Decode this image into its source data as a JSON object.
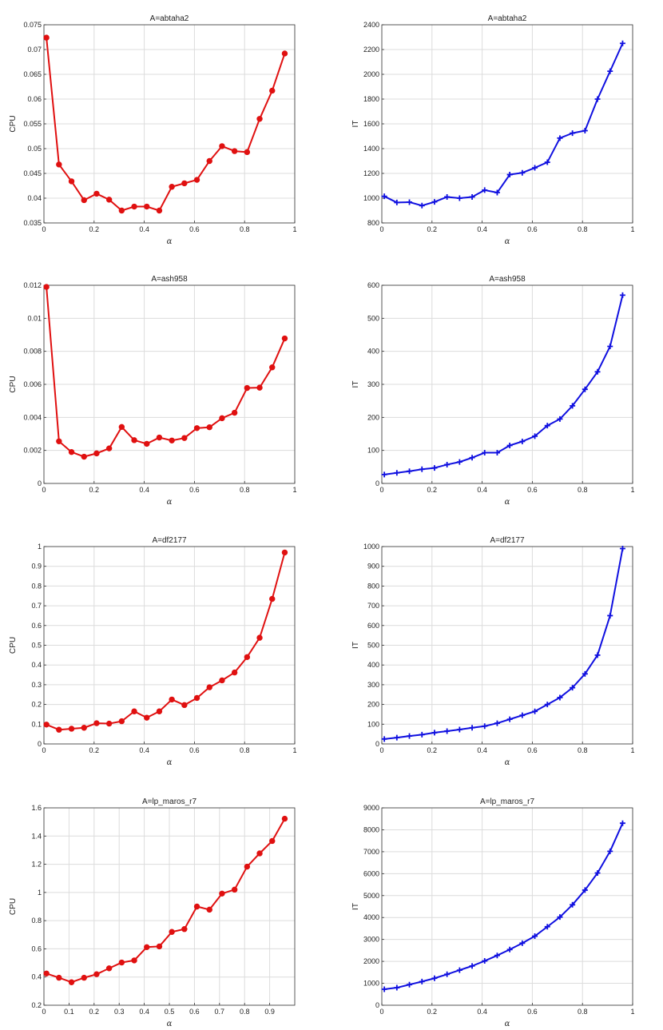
{
  "chart_data": [
    {
      "type": "line",
      "title": "A=abtaha2",
      "xlabel": "α",
      "ylabel": "CPU",
      "xlim": [
        0,
        1
      ],
      "ylim": [
        0.035,
        0.075
      ],
      "xticks": [
        "0",
        "0.2",
        "0.4",
        "0.6",
        "0.8",
        "1"
      ],
      "yticks": [
        "0.035",
        "0.04",
        "0.045",
        "0.05",
        "0.055",
        "0.06",
        "0.065",
        "0.07",
        "0.075"
      ],
      "grid": true,
      "color": "#e01010",
      "marker": "circle",
      "x": [
        0.01,
        0.06,
        0.11,
        0.16,
        0.21,
        0.26,
        0.31,
        0.36,
        0.41,
        0.46,
        0.51,
        0.56,
        0.61,
        0.66,
        0.71,
        0.76,
        0.81,
        0.86,
        0.91,
        0.96
      ],
      "y": [
        0.0724,
        0.0468,
        0.0434,
        0.0396,
        0.0409,
        0.0397,
        0.0375,
        0.0383,
        0.0383,
        0.0375,
        0.0423,
        0.043,
        0.0437,
        0.0475,
        0.0505,
        0.0495,
        0.0493,
        0.056,
        0.0617,
        0.0692
      ]
    },
    {
      "type": "line",
      "title": "A=abtaha2",
      "xlabel": "α",
      "ylabel": "IT",
      "xlim": [
        0,
        1
      ],
      "ylim": [
        800,
        2400
      ],
      "xticks": [
        "0",
        "0.2",
        "0.4",
        "0.6",
        "0.8",
        "1"
      ],
      "yticks": [
        "800",
        "1000",
        "1200",
        "1400",
        "1600",
        "1800",
        "2000",
        "2200",
        "2400"
      ],
      "grid": true,
      "color": "#1010e0",
      "marker": "plus",
      "x": [
        0.01,
        0.06,
        0.11,
        0.16,
        0.21,
        0.26,
        0.31,
        0.36,
        0.41,
        0.46,
        0.51,
        0.56,
        0.61,
        0.66,
        0.71,
        0.76,
        0.81,
        0.86,
        0.91,
        0.96
      ],
      "y": [
        1015,
        965,
        968,
        940,
        970,
        1010,
        1000,
        1010,
        1065,
        1045,
        1190,
        1205,
        1245,
        1290,
        1485,
        1525,
        1545,
        1800,
        2025,
        2250
      ]
    },
    {
      "type": "line",
      "title": "A=ash958",
      "xlabel": "α",
      "ylabel": "CPU",
      "xlim": [
        0,
        1
      ],
      "ylim": [
        0,
        0.012
      ],
      "xticks": [
        "0",
        "0.2",
        "0.4",
        "0.6",
        "0.8",
        "1"
      ],
      "yticks": [
        "0",
        "0.002",
        "0.004",
        "0.006",
        "0.008",
        "0.01",
        "0.012"
      ],
      "grid": true,
      "color": "#e01010",
      "marker": "circle",
      "x": [
        0.01,
        0.06,
        0.11,
        0.16,
        0.21,
        0.26,
        0.31,
        0.36,
        0.41,
        0.46,
        0.51,
        0.56,
        0.61,
        0.66,
        0.71,
        0.76,
        0.81,
        0.86,
        0.91,
        0.96
      ],
      "y": [
        0.0119,
        0.00255,
        0.0019,
        0.00162,
        0.00182,
        0.00212,
        0.00342,
        0.00262,
        0.0024,
        0.00278,
        0.0026,
        0.00275,
        0.00335,
        0.0034,
        0.00395,
        0.00428,
        0.00578,
        0.0058,
        0.00703,
        0.00878
      ]
    },
    {
      "type": "line",
      "title": "A=ash958",
      "xlabel": "α",
      "ylabel": "IT",
      "xlim": [
        0,
        1
      ],
      "ylim": [
        0,
        600
      ],
      "xticks": [
        "0",
        "0.2",
        "0.4",
        "0.6",
        "0.8",
        "1"
      ],
      "yticks": [
        "0",
        "100",
        "200",
        "300",
        "400",
        "500",
        "600"
      ],
      "grid": true,
      "color": "#1010e0",
      "marker": "plus",
      "x": [
        0.01,
        0.06,
        0.11,
        0.16,
        0.21,
        0.26,
        0.31,
        0.36,
        0.41,
        0.46,
        0.51,
        0.56,
        0.61,
        0.66,
        0.71,
        0.76,
        0.81,
        0.86,
        0.91,
        0.96
      ],
      "y": [
        27,
        32,
        37,
        43,
        47,
        57,
        65,
        78,
        93,
        93,
        115,
        127,
        143,
        175,
        195,
        235,
        285,
        338,
        415,
        570
      ]
    },
    {
      "type": "line",
      "title": "A=df2177",
      "xlabel": "α",
      "ylabel": "CPU",
      "xlim": [
        0,
        1
      ],
      "ylim": [
        0,
        1
      ],
      "xticks": [
        "0",
        "0.2",
        "0.4",
        "0.6",
        "0.8",
        "1"
      ],
      "yticks": [
        "0",
        "0.1",
        "0.2",
        "0.3",
        "0.4",
        "0.5",
        "0.6",
        "0.7",
        "0.8",
        "0.9",
        "1"
      ],
      "grid": true,
      "color": "#e01010",
      "marker": "circle",
      "x": [
        0.01,
        0.06,
        0.11,
        0.16,
        0.21,
        0.26,
        0.31,
        0.36,
        0.41,
        0.46,
        0.51,
        0.56,
        0.61,
        0.66,
        0.71,
        0.76,
        0.81,
        0.86,
        0.91,
        0.96
      ],
      "y": [
        0.098,
        0.072,
        0.077,
        0.082,
        0.105,
        0.103,
        0.115,
        0.165,
        0.133,
        0.165,
        0.225,
        0.197,
        0.233,
        0.287,
        0.322,
        0.362,
        0.44,
        0.538,
        0.735,
        0.97
      ]
    },
    {
      "type": "line",
      "title": "A=df2177",
      "xlabel": "α",
      "ylabel": "IT",
      "xlim": [
        0,
        1
      ],
      "ylim": [
        0,
        1000
      ],
      "xticks": [
        "0",
        "0.2",
        "0.4",
        "0.6",
        "0.8",
        "1"
      ],
      "yticks": [
        "0",
        "100",
        "200",
        "300",
        "400",
        "500",
        "600",
        "700",
        "800",
        "900",
        "1000"
      ],
      "grid": true,
      "color": "#1010e0",
      "marker": "plus",
      "x": [
        0.01,
        0.06,
        0.11,
        0.16,
        0.21,
        0.26,
        0.31,
        0.36,
        0.41,
        0.46,
        0.51,
        0.56,
        0.61,
        0.66,
        0.71,
        0.76,
        0.81,
        0.86,
        0.91,
        0.96
      ],
      "y": [
        25,
        32,
        40,
        47,
        57,
        65,
        73,
        82,
        90,
        105,
        125,
        145,
        165,
        200,
        235,
        285,
        355,
        450,
        650,
        990
      ]
    },
    {
      "type": "line",
      "title": "A=lp_maros_r7",
      "xlabel": "α",
      "ylabel": "CPU",
      "xlim": [
        0,
        1
      ],
      "ylim": [
        0.2,
        1.6
      ],
      "xticks": [
        "0",
        "0.1",
        "0.2",
        "0.3",
        "0.4",
        "0.5",
        "0.6",
        "0.7",
        "0.8",
        "0.9"
      ],
      "yticks": [
        "0.2",
        "0.4",
        "0.6",
        "0.8",
        "1",
        "1.2",
        "1.4",
        "1.6"
      ],
      "grid": true,
      "color": "#e01010",
      "marker": "circle",
      "x": [
        0.01,
        0.06,
        0.11,
        0.16,
        0.21,
        0.26,
        0.31,
        0.36,
        0.41,
        0.46,
        0.51,
        0.56,
        0.61,
        0.66,
        0.71,
        0.76,
        0.81,
        0.86,
        0.91,
        0.96
      ],
      "y": [
        0.425,
        0.395,
        0.363,
        0.395,
        0.42,
        0.462,
        0.503,
        0.518,
        0.612,
        0.617,
        0.72,
        0.74,
        0.9,
        0.878,
        0.992,
        1.02,
        1.183,
        1.277,
        1.365,
        1.523
      ]
    },
    {
      "type": "line",
      "title": "A=lp_maros_r7",
      "xlabel": "α",
      "ylabel": "IT",
      "xlim": [
        0,
        1
      ],
      "ylim": [
        0,
        9000
      ],
      "xticks": [
        "0",
        "0.2",
        "0.4",
        "0.6",
        "0.8",
        "1"
      ],
      "yticks": [
        "0",
        "1000",
        "2000",
        "3000",
        "4000",
        "5000",
        "6000",
        "7000",
        "8000",
        "9000"
      ],
      "grid": true,
      "color": "#1010e0",
      "marker": "plus",
      "x": [
        0.01,
        0.06,
        0.11,
        0.16,
        0.21,
        0.26,
        0.31,
        0.36,
        0.41,
        0.46,
        0.51,
        0.56,
        0.61,
        0.66,
        0.71,
        0.76,
        0.81,
        0.86,
        0.91,
        0.96
      ],
      "y": [
        730,
        800,
        940,
        1080,
        1230,
        1410,
        1600,
        1790,
        2020,
        2270,
        2540,
        2830,
        3150,
        3580,
        4020,
        4580,
        5250,
        6030,
        7020,
        8300
      ]
    }
  ]
}
